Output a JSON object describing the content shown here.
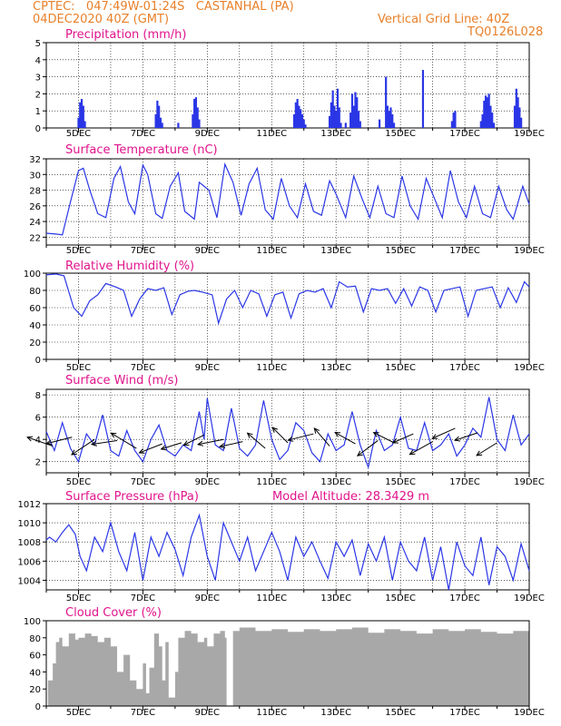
{
  "header": {
    "line1": "CPTEC:   047:49W-01:24S   CASTANHAL (PA)",
    "line2": "04DEC2020 40Z (GMT)",
    "grid_note": "Vertical Grid Line: 40Z",
    "code": "TQ0126L028"
  },
  "colors": {
    "line": "#2a36e6",
    "cloud": "#a8a8a8",
    "title": "#e0148c",
    "header": "#e8802a",
    "arrow": "#000000"
  },
  "x_tick_labels": [
    "5DEC",
    "7DEC",
    "9DEC",
    "11DEC",
    "13DEC",
    "15DEC",
    "17DEC",
    "19DEC"
  ],
  "model_altitude": "Model Altitude: 28.3429 m",
  "chart_data": [
    {
      "id": "precip",
      "type": "bar",
      "title": "Precipitation (mm/h)",
      "ylim": [
        0,
        5
      ],
      "yticks": [
        "0",
        "1",
        "2",
        "3",
        "4",
        "5"
      ],
      "xlim": [
        4.0,
        19.0
      ],
      "grid": true,
      "x": [
        5.0,
        5.05,
        5.1,
        5.15,
        5.2,
        7.4,
        7.45,
        7.5,
        7.55,
        7.6,
        8.1,
        8.55,
        8.6,
        8.65,
        8.7,
        8.75,
        11.7,
        11.75,
        11.8,
        11.85,
        11.9,
        11.95,
        12.0,
        12.05,
        12.8,
        12.85,
        12.9,
        12.95,
        13.0,
        13.05,
        13.1,
        13.15,
        13.3,
        13.45,
        13.5,
        13.55,
        13.6,
        13.65,
        13.7,
        13.75,
        14.35,
        14.55,
        14.6,
        14.65,
        14.7,
        14.75,
        14.8,
        15.7,
        16.6,
        16.65,
        16.7,
        17.5,
        17.55,
        17.6,
        17.65,
        17.7,
        17.75,
        17.8,
        17.85,
        17.9,
        18.55,
        18.6,
        18.65,
        18.7,
        18.75
      ],
      "values": [
        0.6,
        1.5,
        1.7,
        1.3,
        0.4,
        0.8,
        1.6,
        1.3,
        0.6,
        0.3,
        0.3,
        0.8,
        1.7,
        1.8,
        1.2,
        0.5,
        0.8,
        1.5,
        1.7,
        1.3,
        1.1,
        0.8,
        0.5,
        0.2,
        0.7,
        1.5,
        2.2,
        1.3,
        1.0,
        2.3,
        1.2,
        0.3,
        0.3,
        0.9,
        2.0,
        1.3,
        2.1,
        1.8,
        1.0,
        0.4,
        0.5,
        3.0,
        1.3,
        1.0,
        1.2,
        0.8,
        0.3,
        3.4,
        0.4,
        0.9,
        1.0,
        0.4,
        0.8,
        1.6,
        1.9,
        1.8,
        2.0,
        1.3,
        0.9,
        0.3,
        1.3,
        2.3,
        1.8,
        1.2,
        0.6
      ]
    },
    {
      "id": "temp",
      "type": "line",
      "title": "Surface Temperature (nC)",
      "ylim": [
        21,
        32
      ],
      "yticks": [
        "22",
        "24",
        "26",
        "28",
        "30",
        "32"
      ],
      "xlim": [
        4.0,
        19.0
      ],
      "grid": true,
      "x": [
        4.0,
        4.3,
        4.5,
        4.75,
        5.0,
        5.15,
        5.35,
        5.6,
        5.85,
        6.1,
        6.3,
        6.55,
        6.75,
        7.0,
        7.15,
        7.4,
        7.6,
        7.85,
        8.1,
        8.3,
        8.6,
        8.75,
        9.05,
        9.3,
        9.55,
        9.8,
        10.05,
        10.3,
        10.55,
        10.8,
        11.05,
        11.3,
        11.55,
        11.8,
        12.05,
        12.3,
        12.55,
        12.8,
        13.0,
        13.3,
        13.55,
        13.8,
        14.05,
        14.3,
        14.55,
        14.8,
        15.05,
        15.3,
        15.55,
        15.8,
        16.05,
        16.3,
        16.55,
        16.8,
        17.05,
        17.3,
        17.55,
        17.8,
        18.05,
        18.3,
        18.5,
        18.8,
        19.0
      ],
      "values": [
        22.5,
        22.4,
        22.3,
        26.5,
        30.5,
        30.8,
        28.0,
        25.0,
        24.5,
        29.5,
        31.0,
        26.5,
        25.0,
        31.2,
        30.0,
        25.0,
        24.4,
        28.5,
        30.2,
        25.3,
        24.3,
        29.0,
        28.0,
        24.5,
        31.3,
        29.0,
        24.8,
        28.8,
        30.8,
        25.5,
        24.3,
        29.5,
        26.0,
        24.5,
        28.8,
        25.3,
        24.8,
        29.2,
        27.5,
        24.5,
        29.8,
        27.0,
        24.5,
        28.5,
        25.0,
        24.5,
        29.8,
        26.0,
        24.3,
        29.5,
        27.0,
        24.5,
        30.5,
        26.5,
        24.5,
        28.5,
        25.0,
        24.5,
        28.5,
        25.5,
        24.3,
        28.5,
        26.2
      ]
    },
    {
      "id": "rh",
      "type": "line",
      "title": "Relative Humidity (%)",
      "ylim": [
        0,
        100
      ],
      "yticks": [
        "0",
        "20",
        "40",
        "60",
        "80",
        "100"
      ],
      "xlim": [
        4.0,
        19.0
      ],
      "grid": true,
      "x": [
        4.0,
        4.3,
        4.55,
        4.85,
        5.1,
        5.35,
        5.6,
        5.85,
        6.15,
        6.4,
        6.65,
        6.9,
        7.15,
        7.4,
        7.65,
        7.9,
        8.15,
        8.4,
        8.6,
        8.85,
        9.15,
        9.35,
        9.6,
        9.85,
        10.1,
        10.35,
        10.6,
        10.85,
        11.1,
        11.35,
        11.6,
        11.85,
        12.1,
        12.35,
        12.6,
        12.85,
        13.1,
        13.35,
        13.6,
        13.85,
        14.1,
        14.35,
        14.6,
        14.85,
        15.1,
        15.35,
        15.6,
        15.85,
        16.1,
        16.35,
        16.6,
        16.85,
        17.1,
        17.35,
        17.6,
        17.85,
        18.1,
        18.35,
        18.6,
        18.85,
        19.0
      ],
      "values": [
        98,
        99,
        97,
        60,
        50,
        68,
        75,
        88,
        84,
        80,
        50,
        70,
        82,
        80,
        83,
        52,
        75,
        79,
        80,
        78,
        75,
        42,
        70,
        80,
        60,
        80,
        76,
        50,
        75,
        78,
        48,
        76,
        80,
        78,
        82,
        60,
        90,
        84,
        85,
        55,
        82,
        80,
        82,
        65,
        82,
        62,
        84,
        80,
        55,
        80,
        82,
        84,
        50,
        80,
        82,
        84,
        60,
        83,
        66,
        90,
        84
      ]
    },
    {
      "id": "wind",
      "type": "line",
      "title": "Surface Wind (m/s)",
      "ylim": [
        1,
        8.5
      ],
      "yticks": [
        "2",
        "4",
        "6",
        "8"
      ],
      "xlim": [
        4.0,
        19.0
      ],
      "grid": true,
      "x": [
        4.0,
        4.25,
        4.5,
        4.75,
        5.0,
        5.25,
        5.5,
        5.75,
        6.0,
        6.25,
        6.5,
        6.75,
        7.0,
        7.25,
        7.5,
        7.75,
        8.0,
        8.25,
        8.5,
        8.75,
        8.9,
        9.0,
        9.25,
        9.5,
        9.75,
        10.0,
        10.25,
        10.5,
        10.75,
        11.0,
        11.25,
        11.5,
        11.75,
        12.0,
        12.25,
        12.5,
        12.75,
        13.0,
        13.25,
        13.5,
        13.75,
        14.0,
        14.25,
        14.5,
        14.75,
        15.0,
        15.25,
        15.5,
        15.75,
        16.0,
        16.25,
        16.5,
        16.75,
        17.0,
        17.25,
        17.5,
        17.75,
        18.0,
        18.25,
        18.5,
        18.75,
        19.0
      ],
      "values": [
        4.7,
        3.0,
        5.5,
        3.2,
        2.0,
        4.5,
        3.5,
        6.2,
        3.0,
        2.5,
        4.8,
        3.0,
        2.0,
        4.0,
        5.3,
        3.0,
        2.5,
        3.5,
        3.0,
        6.5,
        4.0,
        7.7,
        3.5,
        3.0,
        6.8,
        3.2,
        2.5,
        3.5,
        7.5,
        4.0,
        2.2,
        3.0,
        5.5,
        4.8,
        2.8,
        2.0,
        4.5,
        3.0,
        3.5,
        6.5,
        3.5,
        1.5,
        4.8,
        3.0,
        3.5,
        6.0,
        3.2,
        3.0,
        5.5,
        3.0,
        3.5,
        4.5,
        2.5,
        3.5,
        5.0,
        4.2,
        7.8,
        4.0,
        3.0,
        6.2,
        3.5,
        4.5
      ],
      "vectors": {
        "x": [
          4.2,
          4.8,
          5.5,
          6.2,
          6.8,
          7.6,
          8.2,
          8.9,
          9.5,
          10.1,
          10.8,
          11.5,
          12.3,
          12.8,
          13.6,
          14.3,
          14.8,
          15.4,
          16.0,
          16.7,
          17.4,
          18.0
        ],
        "y": [
          3.4,
          4.2,
          4.0,
          3.9,
          3.2,
          3.6,
          3.7,
          4.4,
          4.0,
          3.8,
          3.2,
          3.7,
          4.5,
          3.4,
          3.6,
          3.9,
          3.7,
          4.5,
          3.8,
          5.0,
          4.6,
          3.7
        ],
        "u": [
          -1.0,
          -1.0,
          -0.9,
          -1.0,
          -1.0,
          -0.9,
          -0.8,
          -0.8,
          -1.0,
          -0.9,
          -0.7,
          -0.6,
          -1.0,
          -0.6,
          -0.8,
          -0.8,
          -0.8,
          -0.8,
          -0.9,
          -0.9,
          -0.9,
          -0.8
        ],
        "v": [
          0.35,
          -0.25,
          -0.6,
          -0.15,
          0.6,
          -0.35,
          -0.25,
          -0.4,
          -0.2,
          -0.2,
          0.6,
          0.6,
          -0.25,
          0.7,
          0.45,
          -0.6,
          0.4,
          -0.35,
          -0.5,
          -0.4,
          -0.3,
          -0.5
        ]
      }
    },
    {
      "id": "press",
      "type": "line",
      "title": "Surface Pressure (hPa)",
      "ylim": [
        1003,
        1012
      ],
      "yticks": [
        "1004",
        "1006",
        "1008",
        "1010",
        "1012"
      ],
      "xlim": [
        4.0,
        19.0
      ],
      "grid": true,
      "x": [
        4.0,
        4.1,
        4.3,
        4.5,
        4.7,
        4.9,
        5.05,
        5.25,
        5.5,
        5.75,
        6.0,
        6.25,
        6.5,
        6.75,
        7.0,
        7.25,
        7.5,
        7.75,
        8.0,
        8.25,
        8.5,
        8.75,
        9.0,
        9.25,
        9.5,
        9.75,
        10.0,
        10.25,
        10.5,
        10.75,
        11.0,
        11.25,
        11.5,
        11.75,
        12.0,
        12.25,
        12.5,
        12.75,
        13.0,
        13.25,
        13.5,
        13.75,
        14.0,
        14.25,
        14.5,
        14.75,
        15.0,
        15.25,
        15.5,
        15.75,
        16.0,
        16.25,
        16.5,
        16.75,
        17.0,
        17.25,
        17.5,
        17.75,
        18.0,
        18.25,
        18.5,
        18.75,
        19.0
      ],
      "values": [
        1008.2,
        1008.5,
        1008.0,
        1009.0,
        1009.8,
        1008.8,
        1006.5,
        1005.0,
        1008.5,
        1007.0,
        1010.0,
        1007.0,
        1005.0,
        1009.0,
        1004.0,
        1008.5,
        1006.5,
        1009.0,
        1007.2,
        1004.5,
        1008.5,
        1010.8,
        1006.5,
        1004.0,
        1010.0,
        1008.0,
        1006.0,
        1008.5,
        1005.0,
        1007.0,
        1009.0,
        1007.0,
        1004.0,
        1008.5,
        1006.5,
        1008.0,
        1006.0,
        1004.2,
        1008.0,
        1006.5,
        1008.2,
        1004.5,
        1007.8,
        1006.0,
        1008.5,
        1004.0,
        1008.0,
        1006.0,
        1005.0,
        1008.5,
        1004.0,
        1007.5,
        1003.0,
        1008.0,
        1005.5,
        1004.5,
        1008.5,
        1003.5,
        1007.5,
        1006.5,
        1004.0,
        1007.8,
        1005.0
      ]
    },
    {
      "id": "cloud",
      "type": "area",
      "title": "Cloud Cover (%)",
      "ylim": [
        0,
        100
      ],
      "yticks": [
        "0",
        "20",
        "40",
        "60",
        "80",
        "100"
      ],
      "xlim": [
        4.0,
        19.0
      ],
      "grid": false,
      "x": [
        4.0,
        4.05,
        4.2,
        4.3,
        4.4,
        4.5,
        4.7,
        4.9,
        5.0,
        5.2,
        5.4,
        5.6,
        5.8,
        6.0,
        6.2,
        6.4,
        6.6,
        6.8,
        7.0,
        7.1,
        7.2,
        7.35,
        7.5,
        7.6,
        7.7,
        7.8,
        8.0,
        8.1,
        8.3,
        8.5,
        8.7,
        8.9,
        9.0,
        9.2,
        9.4,
        9.55,
        9.6,
        9.8,
        10.0,
        10.5,
        11.0,
        11.5,
        12.0,
        12.5,
        13.0,
        13.5,
        14.0,
        14.5,
        15.0,
        15.5,
        16.0,
        16.5,
        17.0,
        17.5,
        18.0,
        18.5,
        19.0
      ],
      "values": [
        0,
        30,
        50,
        75,
        80,
        70,
        85,
        78,
        80,
        85,
        82,
        75,
        80,
        70,
        40,
        60,
        30,
        20,
        50,
        15,
        45,
        85,
        70,
        30,
        75,
        10,
        40,
        80,
        88,
        85,
        75,
        80,
        70,
        85,
        88,
        80,
        0,
        88,
        92,
        88,
        90,
        87,
        90,
        88,
        90,
        92,
        86,
        90,
        88,
        85,
        90,
        88,
        90,
        87,
        85,
        88,
        90
      ]
    }
  ]
}
